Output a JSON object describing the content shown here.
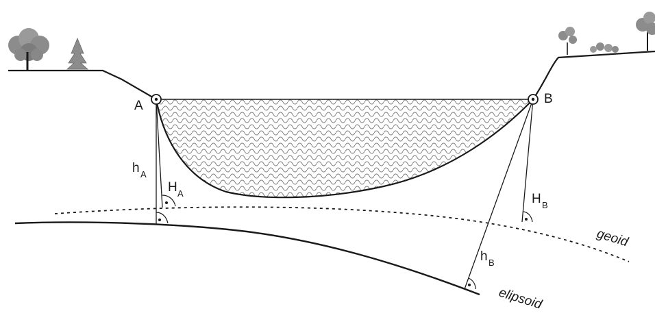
{
  "points": {
    "a": "A",
    "b": "B"
  },
  "heights": {
    "h_a_main": "h",
    "h_a_sub": "A",
    "H_a_main": "H",
    "H_a_sub": "A",
    "H_b_main": "H",
    "H_b_sub": "B",
    "h_b_main": "h",
    "h_b_sub": "B"
  },
  "surfaces": {
    "geoid": "geoid",
    "ellipsoid": "elipsoid"
  },
  "icons": [
    "tree-icon",
    "conifer-icon",
    "shrub-icon"
  ],
  "colors": {
    "ink": "#1a1a1a",
    "water_pattern": "#7a7a7a",
    "tree_fill": "#8c8c8c"
  }
}
